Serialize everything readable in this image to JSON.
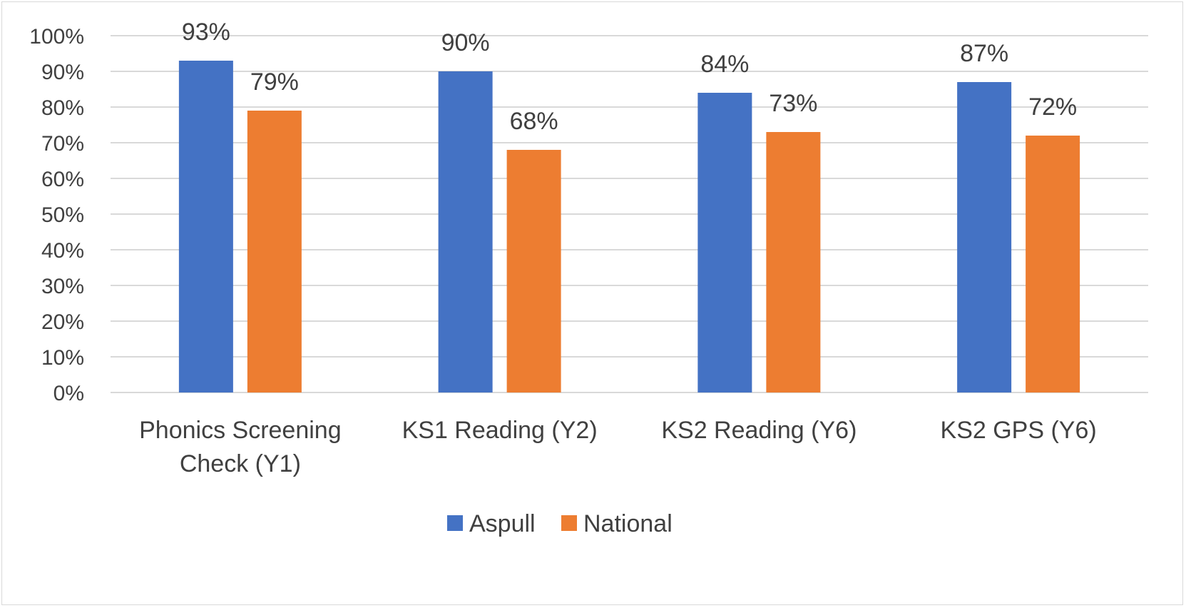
{
  "chart_data": {
    "type": "bar",
    "categories": [
      [
        "Phonics Screening",
        "Check (Y1)"
      ],
      [
        "KS1 Reading (Y2)"
      ],
      [
        "KS2 Reading (Y6)"
      ],
      [
        "KS2 GPS (Y6)"
      ]
    ],
    "series": [
      {
        "name": "Aspull",
        "color": "#4472c4",
        "values": [
          93,
          90,
          84,
          87
        ],
        "labels": [
          "93%",
          "90%",
          "84%",
          "87%"
        ]
      },
      {
        "name": "National",
        "color": "#ed7d31",
        "values": [
          79,
          68,
          73,
          72
        ],
        "labels": [
          "79%",
          "68%",
          "73%",
          "72%"
        ]
      }
    ],
    "y_ticks": [
      "0%",
      "10%",
      "20%",
      "30%",
      "40%",
      "50%",
      "60%",
      "70%",
      "80%",
      "90%",
      "100%"
    ],
    "ylim": [
      0,
      100
    ],
    "grid": true,
    "gridline_color": "#d9d9d9",
    "legend_position": "bottom"
  }
}
